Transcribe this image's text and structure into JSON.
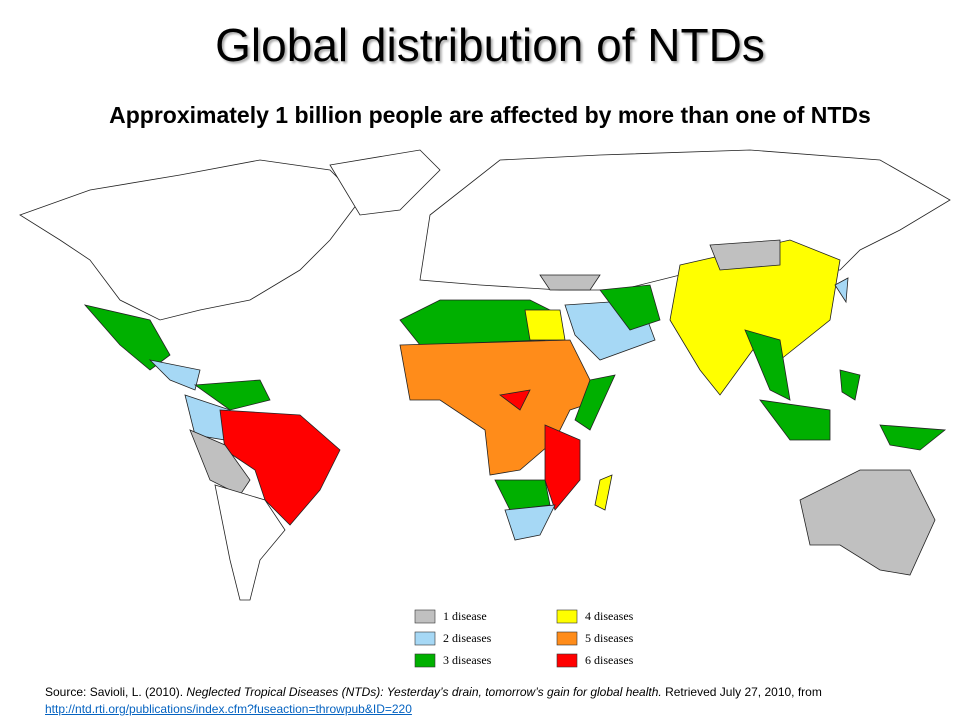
{
  "title": "Global distribution of NTDs",
  "subtitle": "Approximately 1 billion people are affected by more than one of NTDs",
  "legend": [
    {
      "label": "1 disease",
      "color": "#c0c0c0"
    },
    {
      "label": "2 diseases",
      "color": "#a6d8f5"
    },
    {
      "label": "3 diseases",
      "color": "#00b000"
    },
    {
      "label": "4 diseases",
      "color": "#ffff00"
    },
    {
      "label": "5 diseases",
      "color": "#ff8c1a"
    },
    {
      "label": "6 diseases",
      "color": "#ff0000"
    }
  ],
  "source": {
    "prefix": "Source: Savioli, L. (2010). ",
    "title": "Neglected Tropical Diseases (NTDs): Yesterday’s drain, tomorrow’s gain for global health.",
    "suffix": " Retrieved July 27, 2010, from",
    "link": "http://ntd.rti.org/publications/index.cfm?fuseaction=throwpub&ID=220"
  }
}
